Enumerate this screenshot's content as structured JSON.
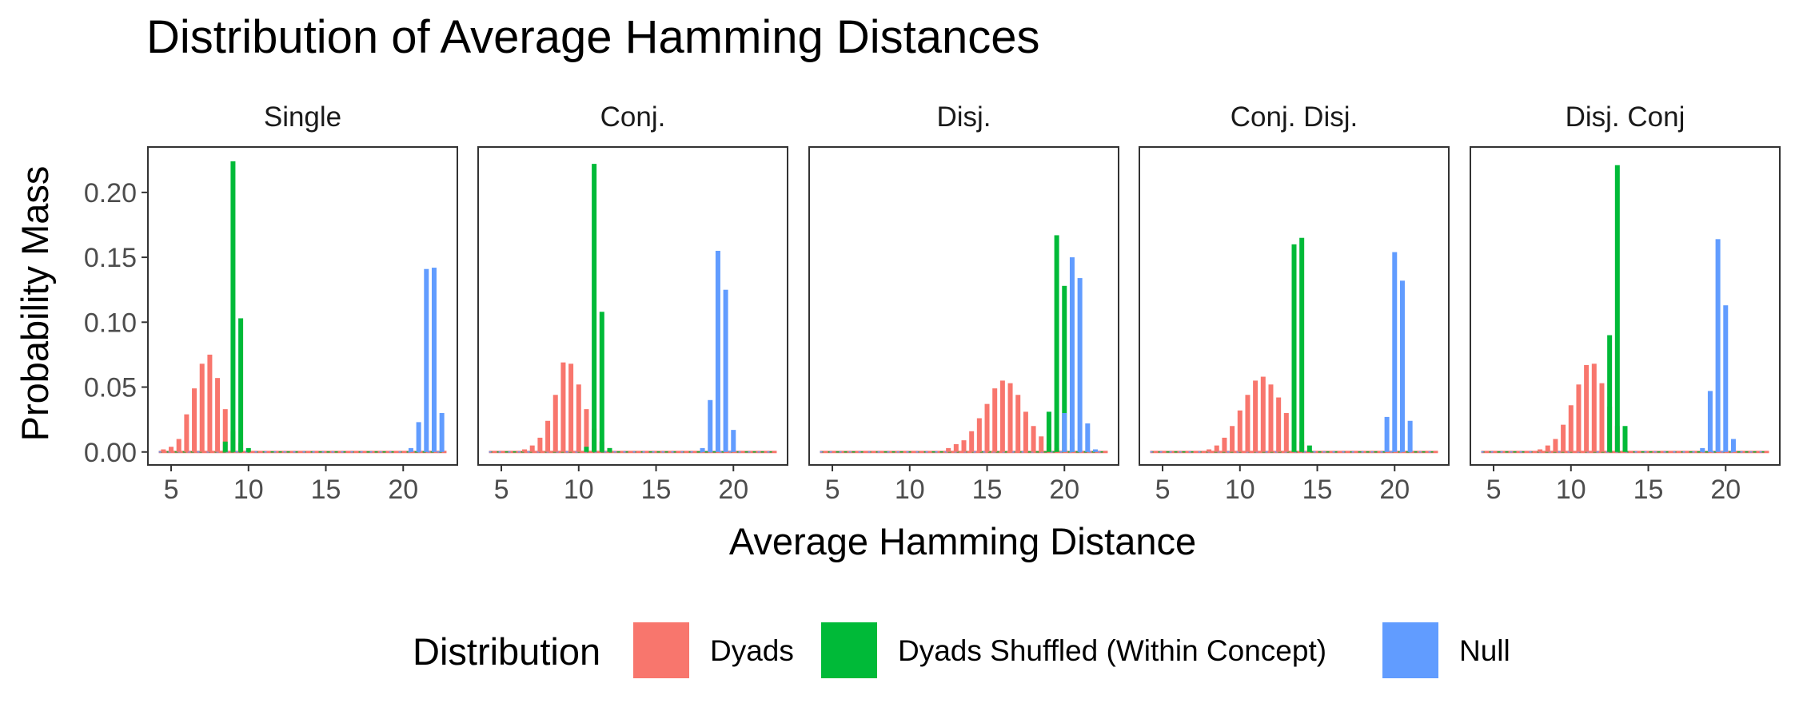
{
  "chart_data": {
    "type": "bar",
    "title": "Distribution of Average Hamming Distances",
    "xlabel": "Average Hamming Distance",
    "ylabel": "Probability Mass",
    "xlim": [
      3.5,
      23.5
    ],
    "ylim": [
      -0.01,
      0.235
    ],
    "x_ticks": [
      5,
      10,
      15,
      20
    ],
    "y_ticks": [
      0.0,
      0.05,
      0.1,
      0.15,
      0.2
    ],
    "y_tick_labels": [
      "0.00",
      "0.05",
      "0.10",
      "0.15",
      "0.20"
    ],
    "grid": false,
    "legend": {
      "title": "Distribution",
      "position": "bottom",
      "items": [
        {
          "name": "Dyads",
          "color": "#F8766D"
        },
        {
          "name": "Dyads Shuffled (Within Concept)",
          "color": "#00BA38"
        },
        {
          "name": "Null",
          "color": "#619CFF"
        }
      ]
    },
    "panels": [
      {
        "name": "Single",
        "series": [
          {
            "name": "Dyads",
            "x": [
              4.5,
              5.0,
              5.5,
              6.0,
              6.5,
              7.0,
              7.5,
              8.0,
              8.5,
              9.0,
              9.5
            ],
            "values": [
              0.002,
              0.004,
              0.01,
              0.029,
              0.049,
              0.068,
              0.075,
              0.057,
              0.033,
              0.016,
              0.007
            ]
          },
          {
            "name": "Dyads Shuffled (Within Concept)",
            "x": [
              8.5,
              9.0,
              9.5,
              10.0
            ],
            "values": [
              0.008,
              0.224,
              0.103,
              0.003
            ]
          },
          {
            "name": "Null",
            "x": [
              20.5,
              21.0,
              21.5,
              22.0,
              22.5
            ],
            "values": [
              0.003,
              0.023,
              0.141,
              0.142,
              0.03
            ]
          }
        ]
      },
      {
        "name": "Conj.",
        "series": [
          {
            "name": "Dyads",
            "x": [
              6.5,
              7.0,
              7.5,
              8.0,
              8.5,
              9.0,
              9.5,
              10.0,
              10.5,
              11.0,
              11.5,
              12.0
            ],
            "values": [
              0.002,
              0.005,
              0.011,
              0.024,
              0.044,
              0.069,
              0.068,
              0.052,
              0.033,
              0.018,
              0.008,
              0.003
            ]
          },
          {
            "name": "Dyads Shuffled (Within Concept)",
            "x": [
              10.5,
              11.0,
              11.5,
              12.0
            ],
            "values": [
              0.004,
              0.222,
              0.108,
              0.003
            ]
          },
          {
            "name": "Null",
            "x": [
              18.0,
              18.5,
              19.0,
              19.5,
              20.0
            ],
            "values": [
              0.003,
              0.04,
              0.155,
              0.125,
              0.017
            ]
          }
        ]
      },
      {
        "name": "Disj.",
        "series": [
          {
            "name": "Dyads",
            "x": [
              12.5,
              13.0,
              13.5,
              14.0,
              14.5,
              15.0,
              15.5,
              16.0,
              16.5,
              17.0,
              17.5,
              18.0,
              18.5,
              19.0,
              19.5,
              20.0
            ],
            "values": [
              0.003,
              0.006,
              0.009,
              0.016,
              0.026,
              0.037,
              0.049,
              0.055,
              0.053,
              0.044,
              0.031,
              0.02,
              0.012,
              0.006,
              0.003,
              0.002
            ]
          },
          {
            "name": "Dyads Shuffled (Within Concept)",
            "x": [
              19.0,
              19.5,
              20.0,
              20.5
            ],
            "values": [
              0.031,
              0.167,
              0.128,
              0.01
            ]
          },
          {
            "name": "Null",
            "x": [
              20.0,
              20.5,
              21.0,
              21.5,
              22.0
            ],
            "values": [
              0.03,
              0.15,
              0.134,
              0.022,
              0.002
            ]
          }
        ]
      },
      {
        "name": "Conj. Disj.",
        "series": [
          {
            "name": "Dyads",
            "x": [
              8.0,
              8.5,
              9.0,
              9.5,
              10.0,
              10.5,
              11.0,
              11.5,
              12.0,
              12.5,
              13.0,
              13.5,
              14.0
            ],
            "values": [
              0.002,
              0.005,
              0.011,
              0.02,
              0.032,
              0.044,
              0.055,
              0.058,
              0.052,
              0.042,
              0.03,
              0.018,
              0.008
            ]
          },
          {
            "name": "Dyads Shuffled (Within Concept)",
            "x": [
              13.5,
              14.0,
              14.5
            ],
            "values": [
              0.16,
              0.165,
              0.005
            ]
          },
          {
            "name": "Null",
            "x": [
              19.5,
              20.0,
              20.5,
              21.0
            ],
            "values": [
              0.027,
              0.154,
              0.132,
              0.024
            ]
          }
        ]
      },
      {
        "name": "Disj. Conj",
        "series": [
          {
            "name": "Dyads",
            "x": [
              8.0,
              8.5,
              9.0,
              9.5,
              10.0,
              10.5,
              11.0,
              11.5,
              12.0,
              12.5,
              13.0,
              13.5
            ],
            "values": [
              0.002,
              0.005,
              0.01,
              0.021,
              0.036,
              0.052,
              0.067,
              0.068,
              0.053,
              0.035,
              0.02,
              0.009
            ]
          },
          {
            "name": "Dyads Shuffled (Within Concept)",
            "x": [
              12.5,
              13.0,
              13.5
            ],
            "values": [
              0.09,
              0.221,
              0.02
            ]
          },
          {
            "name": "Null",
            "x": [
              18.5,
              19.0,
              19.5,
              20.0,
              20.5
            ],
            "values": [
              0.003,
              0.047,
              0.164,
              0.113,
              0.01
            ]
          }
        ]
      }
    ]
  }
}
